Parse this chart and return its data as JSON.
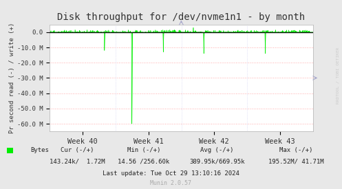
{
  "title": "Disk throughput for /dev/nvme1n1 - by month",
  "ylabel": "Pr second read (-) / write (+)",
  "background_color": "#e8e8e8",
  "plot_bg_color": "#ffffff",
  "grid_color_h": "#ffaaaa",
  "grid_color_v": "#ccccee",
  "line_color": "#00ee00",
  "ylim": [
    -65000000,
    5000000
  ],
  "yticks": [
    0,
    -10000000,
    -20000000,
    -30000000,
    -40000000,
    -50000000,
    -60000000
  ],
  "ytick_labels": [
    "0.0",
    "-10.0 M",
    "-20.0 M",
    "-30.0 M",
    "-40.0 M",
    "-50.0 M",
    "-60.0 M"
  ],
  "xtick_labels": [
    "Week 40",
    "Week 41",
    "Week 42",
    "Week 43"
  ],
  "legend_label": "Bytes",
  "footer_cur": "Cur (-/+)",
  "footer_min": "Min (-/+)",
  "footer_avg": "Avg (-/+)",
  "footer_max": "Max (-/+)",
  "footer_cur_val": "143.24k/  1.72M",
  "footer_min_val": "14.56 /256.60k",
  "footer_avg_val": "389.95k/669.95k",
  "footer_max_val": "195.52M/ 41.71M",
  "last_update": "Last update: Tue Oct 29 13:10:16 2024",
  "munin_version": "Munin 2.0.57",
  "rrdtool_text": "RRDTOOL / TOBI OETIKER",
  "title_fontsize": 10,
  "axis_fontsize": 6.5,
  "tick_fontsize": 7.5,
  "footer_fontsize": 6.5
}
